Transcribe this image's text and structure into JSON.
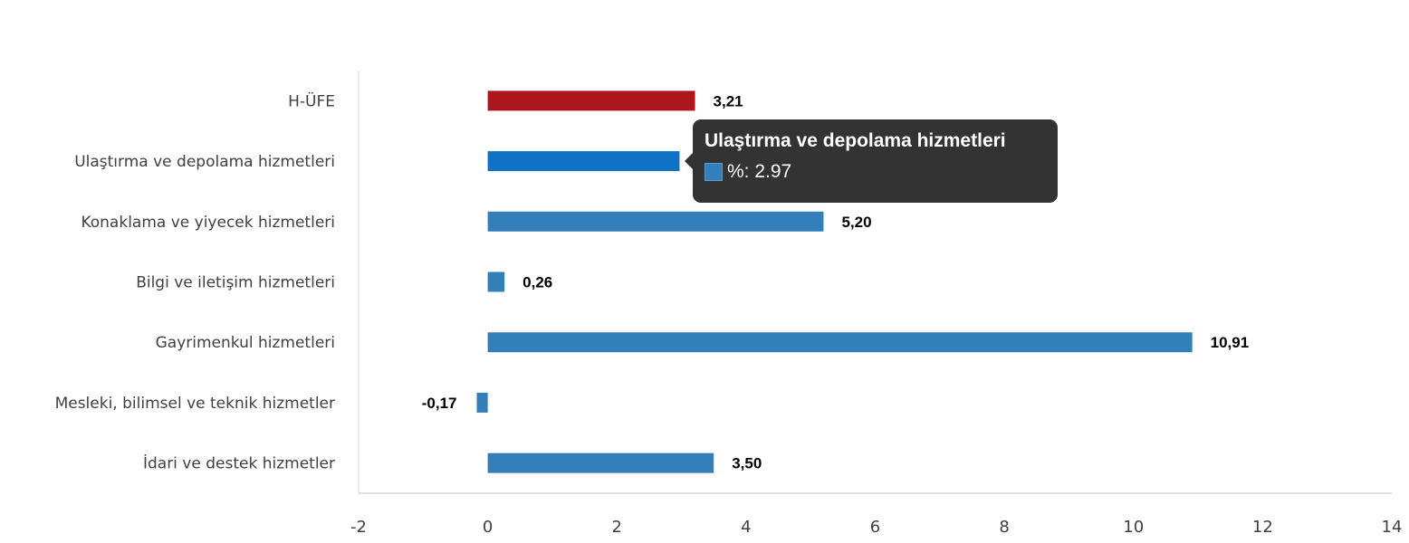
{
  "chart_data": {
    "type": "bar",
    "orientation": "horizontal",
    "categories": [
      "H-ÜFE",
      "Ulaştırma ve depolama hizmetleri",
      "Konaklama ve yiyecek hizmetleri",
      "Bilgi ve iletişim hizmetleri",
      "Gayrimenkul hizmetleri",
      "Mesleki, bilimsel ve teknik hizmetler",
      "İdari ve destek hizmetler"
    ],
    "values": [
      3.21,
      2.97,
      5.2,
      0.26,
      10.91,
      -0.17,
      3.5
    ],
    "data_labels": [
      "3,21",
      "2,97",
      "5,20",
      "0,26",
      "10,91",
      "-0,17",
      "3,50"
    ],
    "colors": [
      "#ad161b",
      "#0e73c4",
      "#337fb9",
      "#337fb9",
      "#337fb9",
      "#337fb9",
      "#337fb9"
    ],
    "xlim": [
      -2,
      14
    ],
    "xticks": [
      -2,
      0,
      2,
      4,
      6,
      8,
      10,
      12,
      14
    ],
    "title": "",
    "xlabel": "",
    "ylabel": "",
    "grid": false,
    "legend": "none"
  },
  "tooltip": {
    "title": "Ulaştırma ve depolama hizmetleri",
    "value_text": "%: 2.97",
    "swatch_color": "#337fb9"
  }
}
